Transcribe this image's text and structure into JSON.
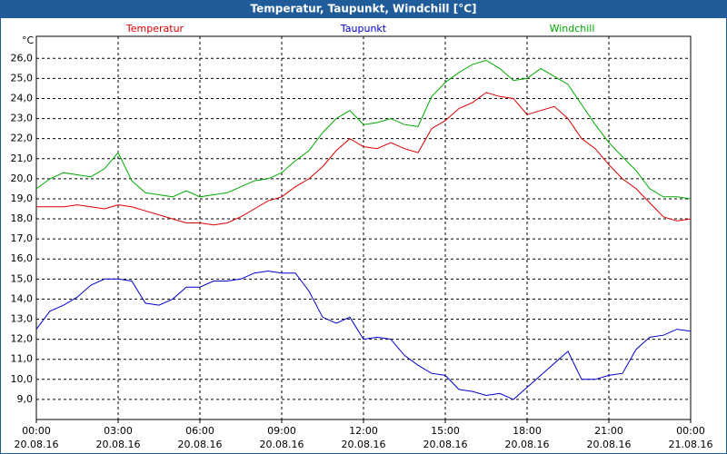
{
  "chart_data": {
    "type": "line",
    "title": "Temperatur, Taupunkt, Windchill [°C]",
    "y_unit": "°C",
    "x": [
      0,
      0.5,
      1,
      1.5,
      2,
      2.5,
      3,
      3.5,
      4,
      4.5,
      5,
      5.5,
      6,
      6.5,
      7,
      7.5,
      8,
      8.5,
      9,
      9.5,
      10,
      10.5,
      11,
      11.5,
      12,
      12.5,
      13,
      13.5,
      14,
      14.5,
      15,
      15.5,
      16,
      16.5,
      17,
      17.5,
      18,
      18.5,
      19,
      19.5,
      20,
      20.5,
      21,
      21.5,
      22,
      22.5,
      23,
      23.5,
      24
    ],
    "series": [
      {
        "name": "Temperatur",
        "color": "#dd0000",
        "values": [
          18.6,
          18.6,
          18.6,
          18.7,
          18.6,
          18.5,
          18.7,
          18.6,
          18.4,
          18.2,
          18.0,
          17.8,
          17.8,
          17.7,
          17.8,
          18.1,
          18.5,
          18.9,
          19.1,
          19.6,
          20.0,
          20.6,
          21.4,
          22.0,
          21.6,
          21.5,
          21.8,
          21.5,
          21.3,
          22.5,
          22.9,
          23.5,
          23.8,
          24.3,
          24.1,
          24.0,
          23.2,
          23.4,
          23.6,
          23.0,
          22.0,
          21.5,
          20.7,
          20.0,
          19.5,
          18.8,
          18.1,
          17.9,
          18.0
        ]
      },
      {
        "name": "Taupunkt",
        "color": "#0000cc",
        "values": [
          12.5,
          13.4,
          13.7,
          14.1,
          14.7,
          15.0,
          15.0,
          14.9,
          13.8,
          13.7,
          14.0,
          14.6,
          14.6,
          14.9,
          14.9,
          15.0,
          15.3,
          15.4,
          15.3,
          15.3,
          14.4,
          13.1,
          12.8,
          13.1,
          12.0,
          12.1,
          12.0,
          11.2,
          10.7,
          10.3,
          10.2,
          9.5,
          9.4,
          9.2,
          9.3,
          9.0,
          9.6,
          10.2,
          10.8,
          11.4,
          10.0,
          10.0,
          10.2,
          10.3,
          11.5,
          12.1,
          12.2,
          12.5,
          12.4
        ]
      },
      {
        "name": "Windchill",
        "color": "#00aa00",
        "values": [
          19.5,
          20.0,
          20.3,
          20.2,
          20.1,
          20.5,
          21.3,
          19.9,
          19.3,
          19.2,
          19.1,
          19.4,
          19.1,
          19.2,
          19.3,
          19.6,
          19.9,
          20.0,
          20.3,
          20.9,
          21.4,
          22.3,
          23.0,
          23.4,
          22.7,
          22.8,
          23.0,
          22.7,
          22.6,
          24.1,
          24.8,
          25.3,
          25.7,
          25.9,
          25.5,
          24.9,
          25.0,
          25.5,
          25.1,
          24.7,
          23.7,
          22.7,
          21.8,
          21.1,
          20.4,
          19.5,
          19.1,
          19.1,
          19.0
        ]
      }
    ],
    "xlim": [
      0,
      24
    ],
    "xticks": [
      {
        "value": 0,
        "label": "00:00"
      },
      {
        "value": 3,
        "label": "03:00"
      },
      {
        "value": 6,
        "label": "06:00"
      },
      {
        "value": 9,
        "label": "09:00"
      },
      {
        "value": 12,
        "label": "12:00"
      },
      {
        "value": 15,
        "label": "15:00"
      },
      {
        "value": 18,
        "label": "18:00"
      },
      {
        "value": 21,
        "label": "21:00"
      },
      {
        "value": 24,
        "label": "00:00"
      }
    ],
    "xtick_dates": [
      "20.08.16",
      "20.08.16",
      "20.08.16",
      "20.08.16",
      "20.08.16",
      "20.08.16",
      "20.08.16",
      "20.08.16",
      "21.08.16"
    ],
    "ylim": [
      8.0,
      27.1
    ],
    "yticks": [
      {
        "value": 9,
        "label": "9,0"
      },
      {
        "value": 10,
        "label": "10,0"
      },
      {
        "value": 11,
        "label": "11,0"
      },
      {
        "value": 12,
        "label": "12,0"
      },
      {
        "value": 13,
        "label": "13,0"
      },
      {
        "value": 14,
        "label": "14,0"
      },
      {
        "value": 15,
        "label": "15,0"
      },
      {
        "value": 16,
        "label": "16,0"
      },
      {
        "value": 17,
        "label": "17,0"
      },
      {
        "value": 18,
        "label": "18,0"
      },
      {
        "value": 19,
        "label": "19,0"
      },
      {
        "value": 20,
        "label": "20,0"
      },
      {
        "value": 21,
        "label": "21,0"
      },
      {
        "value": 22,
        "label": "22,0"
      },
      {
        "value": 23,
        "label": "23,0"
      },
      {
        "value": 24,
        "label": "24,0"
      },
      {
        "value": 25,
        "label": "25,0"
      },
      {
        "value": 26,
        "label": "26,0"
      }
    ],
    "grid": true
  }
}
